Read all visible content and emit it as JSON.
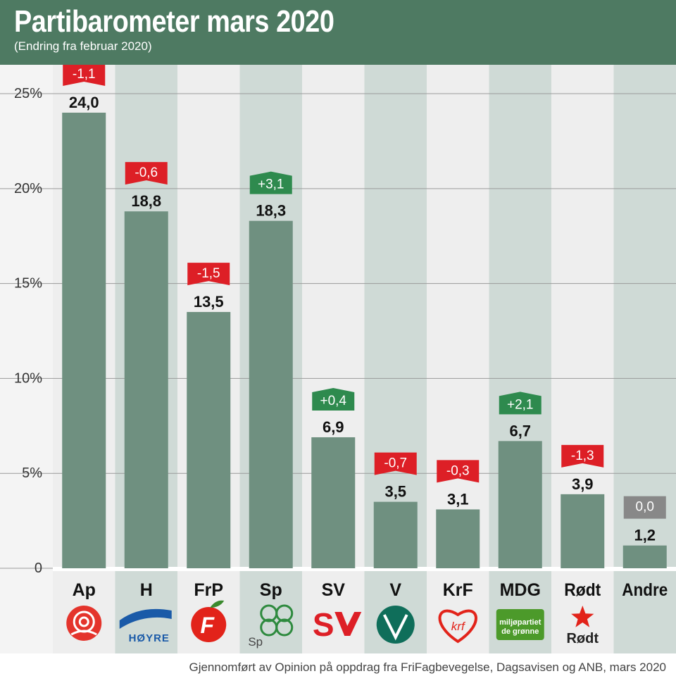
{
  "header": {
    "title": "Partibarometer mars 2020",
    "subtitle": "(Endring fra februar 2020)"
  },
  "footer": {
    "source": "Gjennomført av Opinion på oppdrag fra FriFagbevegelse, Dagsavisen og ANB, mars 2020"
  },
  "colors": {
    "header_bg": "#4e7a62",
    "bar": "#6f9080",
    "column_light": "#eeeeee",
    "column_dark": "#cfdad6",
    "change_negative": "#dd1f26",
    "change_positive": "#2e8a4e",
    "change_zero": "#888888"
  },
  "chart_data": {
    "type": "bar",
    "categories": [
      "Ap",
      "H",
      "FrP",
      "Sp",
      "SV",
      "V",
      "KrF",
      "MDG",
      "Rødt",
      "Andre"
    ],
    "values": [
      24.0,
      18.8,
      13.5,
      18.3,
      6.9,
      3.5,
      3.1,
      6.7,
      3.9,
      1.2
    ],
    "value_labels": [
      "24,0",
      "18,8",
      "13,5",
      "18,3",
      "6,9",
      "3,5",
      "3,1",
      "6,7",
      "3,9",
      "1,2"
    ],
    "changes": [
      -1.1,
      -0.6,
      -1.5,
      3.1,
      0.4,
      -0.7,
      -0.3,
      2.1,
      -1.3,
      0.0
    ],
    "change_labels": [
      "-1,1",
      "-0,6",
      "-1,5",
      "+3,1",
      "+0,4",
      "-0,7",
      "-0,3",
      "+2,1",
      "-1,3",
      "0,0"
    ],
    "yticks": [
      0,
      5,
      10,
      15,
      20,
      25
    ],
    "ytick_labels": [
      "0",
      "5%",
      "10%",
      "15%",
      "20%",
      "25%"
    ],
    "ylim": [
      0,
      26
    ],
    "grid": true,
    "logos": [
      {
        "icon": "rose-logo-icon",
        "text": "",
        "color": "#e4342c"
      },
      {
        "icon": "hoyre-logo-icon",
        "text": "HØYRE",
        "color": "#1a5aa8"
      },
      {
        "icon": "apple-logo-icon",
        "text": "F",
        "color": "#e2231a"
      },
      {
        "icon": "clover-logo-icon",
        "text": "Sp",
        "color": "#2e8a3e"
      },
      {
        "icon": "sv-logo-icon",
        "text": "S",
        "color": "#dd1f26"
      },
      {
        "icon": "venstre-logo-icon",
        "text": "",
        "color": "#0f6e5a"
      },
      {
        "icon": "krf-heart-logo-icon",
        "text": "krf",
        "color": "#e2231a"
      },
      {
        "icon": "mdg-logo-icon",
        "text_lines": [
          "miljøpartiet",
          "de grønne"
        ],
        "color": "#4c9a2a"
      },
      {
        "icon": "rodt-star-logo-icon",
        "text": "Rødt",
        "color": "#e2231a"
      },
      {
        "icon": "",
        "text": "",
        "color": ""
      }
    ]
  }
}
